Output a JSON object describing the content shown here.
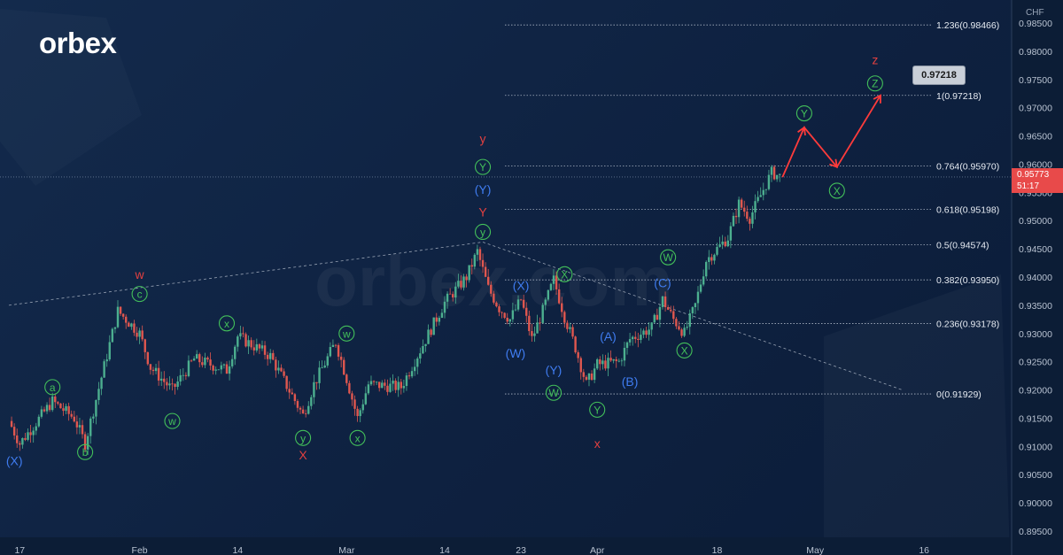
{
  "brand": {
    "logo_text": "orbex",
    "watermark": "orbex.com"
  },
  "instrument": {
    "currency": "CHF",
    "last_price": "0.95773",
    "countdown": "51:17"
  },
  "target_label": "0.97218",
  "colors": {
    "background": "#0f2240",
    "candle_up": "#4caf8f",
    "candle_down": "#e0574f",
    "wave_green": "#43c05a",
    "wave_blue": "#3f7cf0",
    "wave_red": "#e24040",
    "projection": "#ff3b3b"
  },
  "chart_data": {
    "type": "candlestick",
    "y_axis": {
      "ylim": [
        0.89,
        0.9875
      ],
      "ticks": [
        "0.89500",
        "0.90000",
        "0.90500",
        "0.91000",
        "0.91500",
        "0.92000",
        "0.92500",
        "0.93000",
        "0.93500",
        "0.94000",
        "0.94500",
        "0.95000",
        "0.95500",
        "0.96000",
        "0.96500",
        "0.97000",
        "0.97500",
        "0.98000",
        "0.98500"
      ]
    },
    "x_axis": {
      "ticks": [
        {
          "label": "17",
          "i": 1
        },
        {
          "label": "Feb",
          "i": 12
        },
        {
          "label": "14",
          "i": 21
        },
        {
          "label": "Mar",
          "i": 31
        },
        {
          "label": "14",
          "i": 40
        },
        {
          "label": "23",
          "i": 47
        },
        {
          "label": "Apr",
          "i": 54
        },
        {
          "label": "18",
          "i": 65
        },
        {
          "label": "May",
          "i": 74
        },
        {
          "label": "16",
          "i": 84
        }
      ]
    },
    "candle_path": [
      [
        0,
        0.9145
      ],
      [
        1,
        0.9105
      ],
      [
        4,
        0.918
      ],
      [
        6,
        0.915
      ],
      [
        7,
        0.9105
      ],
      [
        10,
        0.934
      ],
      [
        12,
        0.93
      ],
      [
        13,
        0.924
      ],
      [
        15,
        0.92
      ],
      [
        17,
        0.9255
      ],
      [
        20,
        0.9235
      ],
      [
        21,
        0.9295
      ],
      [
        24,
        0.926
      ],
      [
        27,
        0.9155
      ],
      [
        28,
        0.921
      ],
      [
        30,
        0.9285
      ],
      [
        31,
        0.922
      ],
      [
        32,
        0.915
      ],
      [
        33,
        0.921
      ],
      [
        36,
        0.9205
      ],
      [
        38,
        0.928
      ],
      [
        40,
        0.9355
      ],
      [
        42,
        0.94
      ],
      [
        43,
        0.9445
      ],
      [
        44,
        0.938
      ],
      [
        45,
        0.9345
      ],
      [
        46,
        0.9325
      ],
      [
        47,
        0.936
      ],
      [
        48,
        0.929
      ],
      [
        49,
        0.934
      ],
      [
        50,
        0.9395
      ],
      [
        51,
        0.933
      ],
      [
        52,
        0.9275
      ],
      [
        53,
        0.921
      ],
      [
        54,
        0.9245
      ],
      [
        56,
        0.925
      ],
      [
        57,
        0.929
      ],
      [
        59,
        0.931
      ],
      [
        60,
        0.936
      ],
      [
        61,
        0.9325
      ],
      [
        62,
        0.93
      ],
      [
        63,
        0.935
      ],
      [
        64,
        0.943
      ],
      [
        66,
        0.947
      ],
      [
        67,
        0.953
      ],
      [
        68,
        0.9505
      ],
      [
        69,
        0.9545
      ],
      [
        70,
        0.9585
      ],
      [
        70.9,
        0.9577
      ]
    ],
    "fibonacci": [
      {
        "label": "0(0.91929)",
        "value": 0.91929
      },
      {
        "label": "0.236(0.93178)",
        "value": 0.93178
      },
      {
        "label": "0.382(0.93950)",
        "value": 0.9395
      },
      {
        "label": "0.5(0.94574)",
        "value": 0.94574
      },
      {
        "label": "0.618(0.95198)",
        "value": 0.95198
      },
      {
        "label": "0.764(0.95970)",
        "value": 0.9597
      },
      {
        "label": "1(0.97218)",
        "value": 0.97218
      },
      {
        "label": "1.236(0.98466)",
        "value": 0.98466
      }
    ],
    "trendlines": [
      {
        "from": [
          0,
          0.935
        ],
        "to": [
          43.5,
          0.9462
        ]
      },
      {
        "from": [
          43.5,
          0.9462
        ],
        "to": [
          82,
          0.92
        ]
      }
    ],
    "projection": [
      [
        71,
        0.9577
      ],
      [
        73,
        0.9665
      ],
      [
        76,
        0.9595
      ],
      [
        80,
        0.97218
      ]
    ],
    "wave_labels": [
      {
        "text": "(X)",
        "i": 0.5,
        "v": 0.9075,
        "color": "blue",
        "circled": false
      },
      {
        "text": "a",
        "i": 4,
        "v": 0.9205,
        "color": "green",
        "circled": true
      },
      {
        "text": "b",
        "i": 7,
        "v": 0.909,
        "color": "green",
        "circled": true
      },
      {
        "text": "w",
        "i": 12,
        "v": 0.9405,
        "color": "red",
        "circled": false
      },
      {
        "text": "c",
        "i": 12,
        "v": 0.937,
        "color": "green",
        "circled": true
      },
      {
        "text": "w",
        "i": 15,
        "v": 0.9145,
        "color": "green",
        "circled": true
      },
      {
        "text": "x",
        "i": 20,
        "v": 0.9318,
        "color": "green",
        "circled": true
      },
      {
        "text": "y",
        "i": 27,
        "v": 0.9115,
        "color": "green",
        "circled": true
      },
      {
        "text": "X",
        "i": 27,
        "v": 0.9085,
        "color": "red",
        "circled": false
      },
      {
        "text": "w",
        "i": 31,
        "v": 0.93,
        "color": "green",
        "circled": true
      },
      {
        "text": "x",
        "i": 32,
        "v": 0.9115,
        "color": "green",
        "circled": true
      },
      {
        "text": "y",
        "i": 43.5,
        "v": 0.9645,
        "color": "red",
        "circled": false
      },
      {
        "text": "Y",
        "i": 43.5,
        "v": 0.9595,
        "color": "green",
        "circled": true
      },
      {
        "text": "(Y)",
        "i": 43.5,
        "v": 0.9555,
        "color": "blue",
        "circled": false
      },
      {
        "text": "Y",
        "i": 43.5,
        "v": 0.9515,
        "color": "red",
        "circled": false
      },
      {
        "text": "y",
        "i": 43.5,
        "v": 0.948,
        "color": "green",
        "circled": true
      },
      {
        "text": "(X)",
        "i": 47,
        "v": 0.9385,
        "color": "blue",
        "circled": false
      },
      {
        "text": "X",
        "i": 51,
        "v": 0.9405,
        "color": "green",
        "circled": true
      },
      {
        "text": "(W)",
        "i": 46.5,
        "v": 0.9265,
        "color": "blue",
        "circled": false
      },
      {
        "text": "(Y)",
        "i": 50,
        "v": 0.9235,
        "color": "blue",
        "circled": false
      },
      {
        "text": "W",
        "i": 50,
        "v": 0.9195,
        "color": "green",
        "circled": true
      },
      {
        "text": "Y",
        "i": 54,
        "v": 0.9165,
        "color": "green",
        "circled": true
      },
      {
        "text": "x",
        "i": 54,
        "v": 0.9105,
        "color": "red",
        "circled": false
      },
      {
        "text": "(A)",
        "i": 55,
        "v": 0.9295,
        "color": "blue",
        "circled": false
      },
      {
        "text": "(B)",
        "i": 57,
        "v": 0.9215,
        "color": "blue",
        "circled": false
      },
      {
        "text": "(C)",
        "i": 60,
        "v": 0.939,
        "color": "blue",
        "circled": false
      },
      {
        "text": "W",
        "i": 60.5,
        "v": 0.9435,
        "color": "green",
        "circled": true
      },
      {
        "text": "X",
        "i": 62,
        "v": 0.927,
        "color": "green",
        "circled": true
      },
      {
        "text": "Y",
        "i": 73,
        "v": 0.969,
        "color": "green",
        "circled": true
      },
      {
        "text": "X",
        "i": 76,
        "v": 0.9553,
        "color": "green",
        "circled": true
      },
      {
        "text": "z",
        "i": 79.5,
        "v": 0.9785,
        "color": "red",
        "circled": false
      },
      {
        "text": "Z",
        "i": 79.5,
        "v": 0.9743,
        "color": "green",
        "circled": true
      }
    ]
  }
}
